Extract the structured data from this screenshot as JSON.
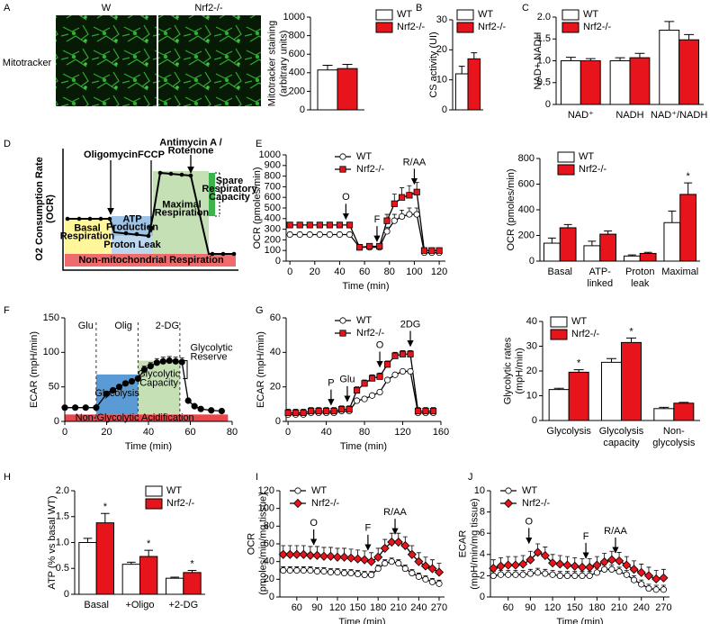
{
  "panels": [
    "A",
    "B",
    "C",
    "D",
    "E",
    "F",
    "G",
    "H",
    "I",
    "J"
  ],
  "image": {
    "columns": [
      "W",
      "Nrf2-/-"
    ],
    "row_label": "Mitotracker"
  },
  "schematic": {
    "ylabel": [
      "O2 Consumption Rate",
      "(OCR)"
    ],
    "labels": [
      "Oligomycin",
      "FCCP",
      [
        "Antimycin A /",
        "Rotenone"
      ],
      [
        "Spare",
        "Respiratory",
        "Capacity"
      ],
      [
        "Basal",
        "Respiration"
      ],
      [
        "ATP",
        "Production"
      ],
      "Proton Leak",
      [
        "Maximal",
        "Respiration"
      ],
      "Non-mitochondrial  Respiration"
    ]
  },
  "chart_data": [
    {
      "type": "bar",
      "ylabel": [
        "Mitotracker staining",
        "(arbitrary units)"
      ],
      "categories": [
        null
      ],
      "series": [
        {
          "name": "WT",
          "color": "#ffffff",
          "values": [
            430
          ],
          "errors": [
            50
          ]
        },
        {
          "name": "Nrf2-/-",
          "color": "#e8141b",
          "values": [
            445
          ],
          "errors": [
            45
          ]
        }
      ],
      "ylim": [
        0,
        1000
      ],
      "yticks": [
        0,
        200,
        400,
        600,
        800,
        1000
      ]
    },
    {
      "type": "bar",
      "ylabel": "CS activity (UI)",
      "categories": [
        null
      ],
      "series": [
        {
          "name": "WT",
          "color": "#ffffff",
          "values": [
            12
          ],
          "errors": [
            2.5
          ]
        },
        {
          "name": "Nrf2-/-",
          "color": "#e8141b",
          "values": [
            17
          ],
          "errors": [
            2
          ]
        }
      ],
      "ylim": [
        0,
        30
      ],
      "yticks": [
        0,
        10,
        20,
        30
      ]
    },
    {
      "type": "bar",
      "ylabel": "NAD+ NADH",
      "categories": [
        "NAD⁺",
        "NADH",
        "NAD⁺/NADH"
      ],
      "series": [
        {
          "name": "WT",
          "color": "#ffffff",
          "values": [
            1.0,
            1.0,
            1.7
          ],
          "errors": [
            0.08,
            0.07,
            0.2
          ]
        },
        {
          "name": "Nrf2-/-",
          "color": "#e8141b",
          "values": [
            1.0,
            1.07,
            1.48
          ],
          "errors": [
            0.05,
            0.1,
            0.12
          ]
        }
      ],
      "ylim": [
        0,
        2
      ],
      "yticks": [
        0,
        0.5,
        {
          "value": 1,
          "label": "1.0"
        },
        1.5,
        {
          "value": 2,
          "label": "2.0"
        }
      ]
    },
    {
      "type": "line",
      "ylabel": "OCR (pmoles/min)",
      "xlabel": "Time (min)",
      "line_color": "#000000",
      "x": [
        0,
        8,
        16,
        24,
        32,
        40,
        48,
        56,
        64,
        72,
        78,
        84,
        90,
        96,
        102,
        108,
        114,
        120
      ],
      "series": [
        {
          "name": "WT",
          "color": "#ffffff",
          "marker": "circle",
          "values": [
            250,
            250,
            250,
            250,
            250,
            250,
            250,
            130,
            130,
            130,
            280,
            380,
            420,
            440,
            440,
            80,
            80,
            80
          ],
          "errors": [
            20,
            20,
            20,
            20,
            20,
            20,
            20,
            15,
            15,
            15,
            40,
            60,
            60,
            60,
            60,
            10,
            10,
            10
          ]
        },
        {
          "name": "Nrf2-/-",
          "color": "#e8141b",
          "marker": "square",
          "values": [
            340,
            340,
            340,
            340,
            340,
            340,
            340,
            130,
            140,
            140,
            380,
            540,
            600,
            620,
            650,
            100,
            100,
            100
          ],
          "errors": [
            25,
            25,
            25,
            25,
            25,
            25,
            25,
            15,
            15,
            15,
            60,
            90,
            90,
            90,
            90,
            15,
            15,
            15
          ]
        }
      ],
      "xlim": [
        -3,
        125
      ],
      "xticks": [
        0,
        20,
        40,
        60,
        80,
        100,
        120
      ],
      "ylim": [
        0,
        1000
      ],
      "yticks": [
        0,
        100,
        200,
        300,
        400,
        500,
        600,
        700,
        800,
        900,
        1000
      ],
      "annotations": [
        "O",
        "F",
        "R/AA"
      ]
    },
    {
      "type": "bar",
      "ylabel": "OCR (pmoles/min)",
      "categories": [
        [
          "Basal"
        ],
        [
          "ATP-",
          "linked"
        ],
        [
          "Proton",
          "leak"
        ],
        [
          "Maximal"
        ]
      ],
      "series": [
        {
          "name": "WT",
          "color": "#ffffff",
          "values": [
            140,
            120,
            40,
            300
          ],
          "errors": [
            40,
            35,
            8,
            90
          ]
        },
        {
          "name": "Nrf2-/-",
          "color": "#e8141b",
          "values": [
            260,
            210,
            60,
            520
          ],
          "errors": [
            25,
            25,
            8,
            90
          ]
        }
      ],
      "ylim": [
        0,
        800
      ],
      "yticks": [
        0,
        200,
        400,
        600,
        800
      ],
      "annotations": [
        "*"
      ]
    },
    {
      "type": "line",
      "ylabel": "ECAR (mpH/min)",
      "xlabel": "Time (min)",
      "line_color": "#000000",
      "color": "#000000",
      "marker": "circle",
      "x": [
        0,
        5,
        10,
        15,
        20,
        23,
        26,
        29,
        32,
        35,
        38,
        41,
        44,
        47,
        50,
        53,
        56,
        59,
        62,
        65,
        70,
        75
      ],
      "values": [
        20,
        20,
        20,
        20,
        40,
        45,
        50,
        55,
        58,
        62,
        75,
        80,
        85,
        87,
        88,
        87,
        86,
        30,
        22,
        18,
        16,
        15
      ],
      "errors": [
        0,
        0,
        0,
        0,
        3,
        3,
        3,
        3,
        3,
        3,
        5,
        5,
        6,
        6,
        6,
        6,
        6,
        0,
        0,
        0,
        0,
        0
      ],
      "xlim": [
        0,
        80
      ],
      "xticks": [
        0,
        20,
        40,
        60,
        80
      ],
      "ylim": [
        0,
        150
      ],
      "yticks": [
        0,
        50,
        100,
        150
      ],
      "annotations": [
        "Glu",
        "Olig",
        "2-DG",
        "Glycolysis",
        [
          "Glycolytic",
          "Capacity"
        ],
        [
          "Glycolytic",
          "Reserve"
        ],
        "Non-Glycolytic Acidification"
      ]
    },
    {
      "type": "line",
      "ylabel": "ECAR (mpH/min)",
      "xlabel": "Time (min)",
      "line_color": "#000000",
      "x": [
        0,
        8,
        16,
        24,
        32,
        40,
        48,
        56,
        64,
        72,
        80,
        88,
        96,
        104,
        112,
        120,
        128,
        136,
        144,
        152
      ],
      "series": [
        {
          "name": "WT",
          "color": "#ffffff",
          "marker": "circle",
          "values": [
            4,
            4,
            4,
            5,
            5,
            5,
            5,
            6,
            6,
            12,
            13,
            15,
            17,
            24,
            27,
            29,
            29,
            5,
            5,
            5
          ],
          "errors": [
            1,
            1,
            1,
            1,
            1,
            1,
            1,
            1,
            1,
            1,
            1,
            1,
            1,
            1,
            1,
            1,
            1,
            1,
            1,
            1
          ]
        },
        {
          "name": "Nrf2-/-",
          "color": "#e8141b",
          "marker": "square",
          "values": [
            5,
            5,
            5,
            6,
            6,
            6,
            6,
            7,
            7,
            18,
            22,
            25,
            26,
            33,
            38,
            39,
            39,
            6,
            6,
            6
          ],
          "errors": [
            2,
            2,
            2,
            2,
            2,
            2,
            2,
            2,
            2,
            2,
            2,
            2,
            2,
            2,
            2,
            2,
            2,
            2,
            2,
            2
          ]
        }
      ],
      "xlim": [
        -2,
        160
      ],
      "xticks": [
        0,
        40,
        80,
        120,
        160
      ],
      "ylim": [
        0,
        60
      ],
      "yticks": [
        0,
        20,
        40,
        60
      ],
      "annotations": [
        "P",
        "Glu",
        "O",
        "2DG"
      ]
    },
    {
      "type": "bar",
      "ylabel": [
        "Glycolytic rates",
        "(mpH/min)"
      ],
      "categories": [
        [
          "Glycolysis"
        ],
        [
          "Glycolysis",
          "capacity"
        ],
        [
          "Non-",
          "glycolysis"
        ]
      ],
      "series": [
        {
          "name": "WT",
          "color": "#ffffff",
          "values": [
            12.5,
            23.5,
            4.8
          ],
          "errors": [
            0.5,
            1.5,
            0.5
          ]
        },
        {
          "name": "Nrf2-/-",
          "color": "#e8141b",
          "values": [
            19.5,
            31.5,
            7
          ],
          "errors": [
            1,
            1.8,
            0.3
          ]
        }
      ],
      "ylim": [
        0,
        40
      ],
      "yticks": [
        0,
        10,
        20,
        30,
        40
      ],
      "annotations": [
        "*",
        "*"
      ]
    },
    {
      "type": "bar",
      "ylabel": "ATP (% vs basal WT)",
      "categories": [
        "Basal",
        "+Oligo",
        "+2-DG"
      ],
      "series": [
        {
          "name": "WT",
          "color": "#ffffff",
          "values": [
            1.0,
            0.58,
            0.31
          ],
          "errors": [
            0.08,
            0.04,
            0.02
          ]
        },
        {
          "name": "Nrf2-/-",
          "color": "#e8141b",
          "values": [
            1.38,
            0.73,
            0.42
          ],
          "errors": [
            0.18,
            0.12,
            0.04
          ]
        }
      ],
      "ylim": [
        0,
        2
      ],
      "yticks": [
        0,
        0.5,
        {
          "value": 1,
          "label": "1.0"
        },
        1.5,
        {
          "value": 2,
          "label": "2.0"
        }
      ],
      "annotations": [
        "*",
        "*",
        "*"
      ]
    },
    {
      "type": "line",
      "ylabel": [
        "OCR",
        "(pmoles/min/mg tissue)"
      ],
      "xlabel": "Time (min)",
      "line_color": "#000000",
      "x": [
        40,
        50,
        60,
        70,
        80,
        90,
        100,
        110,
        120,
        130,
        140,
        150,
        160,
        170,
        180,
        190,
        200,
        210,
        220,
        230,
        240,
        250,
        260,
        270
      ],
      "series": [
        {
          "name": "WT",
          "color": "#ffffff",
          "marker": "circle",
          "values": [
            30,
            30,
            30,
            30,
            30,
            29,
            29,
            28,
            28,
            27,
            27,
            26,
            25,
            25,
            32,
            38,
            40,
            38,
            32,
            27,
            23,
            20,
            17,
            15
          ],
          "errors": [
            4,
            4,
            4,
            4,
            4,
            4,
            4,
            4,
            4,
            4,
            4,
            4,
            4,
            4,
            4,
            4,
            4,
            4,
            4,
            4,
            4,
            4,
            4,
            4
          ]
        },
        {
          "name": "Nrf2-/-",
          "color": "#e8141b",
          "marker": "diamond",
          "values": [
            48,
            48,
            48,
            48,
            47,
            47,
            46,
            46,
            45,
            45,
            44,
            43,
            42,
            40,
            45,
            55,
            62,
            62,
            58,
            48,
            40,
            35,
            32,
            28
          ],
          "errors": [
            10,
            10,
            10,
            10,
            10,
            10,
            10,
            10,
            10,
            10,
            10,
            10,
            10,
            10,
            10,
            10,
            10,
            10,
            10,
            10,
            10,
            10,
            10,
            10
          ]
        }
      ],
      "xlim": [
        35,
        278
      ],
      "xticks": [
        60,
        90,
        120,
        150,
        180,
        210,
        240,
        270
      ],
      "ylim": [
        0,
        120
      ],
      "yticks": [
        0,
        20,
        40,
        60,
        80,
        100,
        120
      ],
      "annotations": [
        "O",
        "F",
        "R/AA"
      ]
    },
    {
      "type": "line",
      "ylabel": [
        "ECAR",
        "(mpH/min/mg tissue)"
      ],
      "xlabel": "Time (min)",
      "line_color": "#000000",
      "x": [
        40,
        50,
        60,
        70,
        80,
        90,
        100,
        110,
        120,
        130,
        140,
        150,
        160,
        170,
        180,
        190,
        200,
        210,
        220,
        230,
        240,
        250,
        260,
        270
      ],
      "series": [
        {
          "name": "WT",
          "color": "#ffffff",
          "marker": "circle",
          "values": [
            2.0,
            2.1,
            2.1,
            2.1,
            2.1,
            2.2,
            2.3,
            2.2,
            2.1,
            2.0,
            2.0,
            2.0,
            2.0,
            2.0,
            2.3,
            2.6,
            2.6,
            2.4,
            2.1,
            1.6,
            1.2,
            0.8,
            0.7,
            0.7
          ],
          "errors": [
            0.4,
            0.4,
            0.4,
            0.4,
            0.4,
            0.4,
            0.4,
            0.4,
            0.4,
            0.4,
            0.4,
            0.4,
            0.4,
            0.4,
            0.4,
            0.4,
            0.4,
            0.4,
            0.4,
            0.4,
            0.4,
            0.4,
            0.4,
            0.4
          ]
        },
        {
          "name": "Nrf2-/-",
          "color": "#e8141b",
          "marker": "diamond",
          "values": [
            2.7,
            2.9,
            3.0,
            3.0,
            3.1,
            3.5,
            4.2,
            3.9,
            3.2,
            3.1,
            3.0,
            2.9,
            2.8,
            2.8,
            3.0,
            3.3,
            3.5,
            3.4,
            3.0,
            2.6,
            2.3,
            2.0,
            1.7,
            1.8
          ],
          "errors": [
            0.8,
            0.8,
            0.8,
            0.8,
            0.8,
            0.8,
            0.8,
            0.8,
            0.8,
            0.8,
            0.8,
            0.8,
            0.8,
            0.8,
            0.8,
            0.8,
            0.8,
            0.8,
            0.8,
            0.8,
            0.8,
            0.8,
            0.8,
            0.8
          ]
        }
      ],
      "xlim": [
        36,
        278
      ],
      "xticks": [
        60,
        90,
        120,
        150,
        180,
        210,
        240,
        270
      ],
      "ylim": [
        0,
        10
      ],
      "yticks": [
        0,
        2,
        4,
        6,
        8,
        10
      ],
      "annotations": [
        "O",
        "F",
        "R/AA"
      ]
    }
  ]
}
